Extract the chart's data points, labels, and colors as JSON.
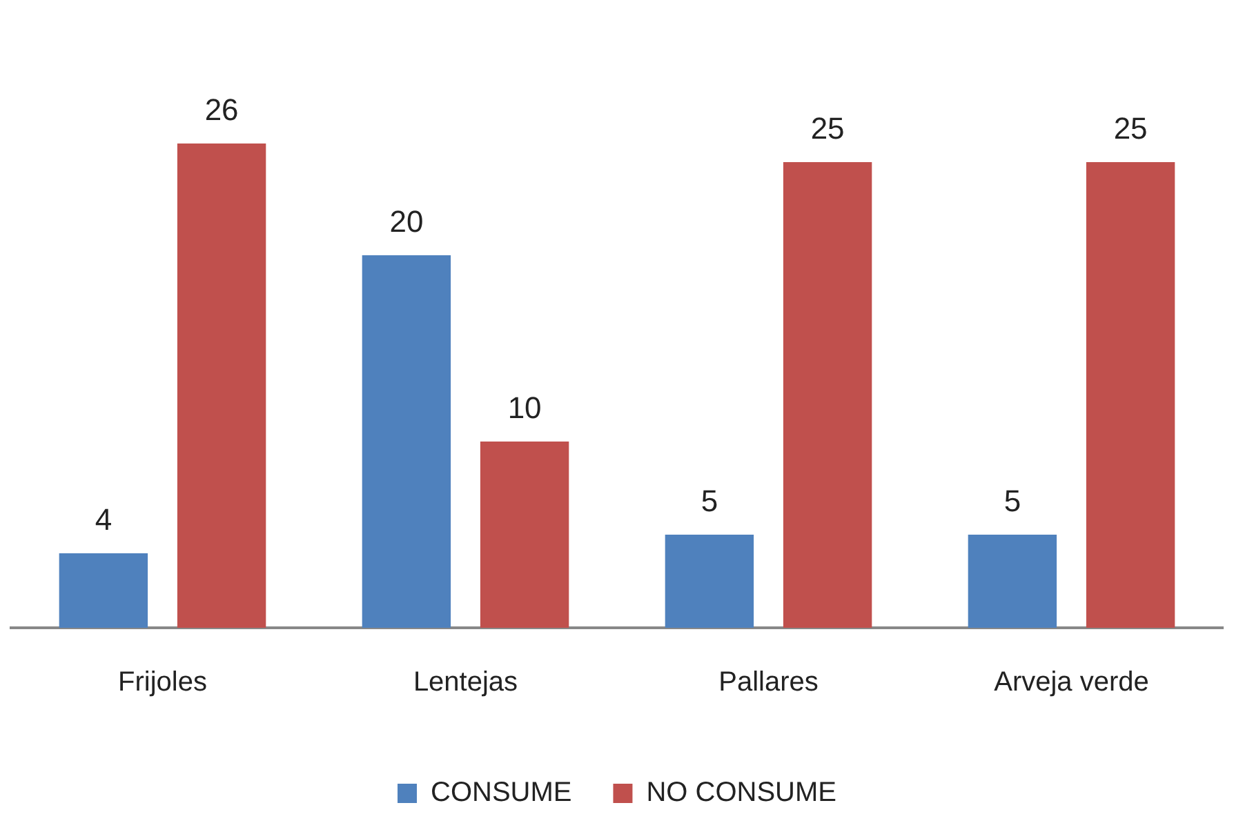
{
  "chart_data": {
    "type": "bar",
    "categories": [
      "Frijoles",
      "Lentejas",
      "Pallares",
      "Arveja verde"
    ],
    "series": [
      {
        "name": "CONSUME",
        "color": "#4f81bd",
        "values": [
          4,
          20,
          5,
          5
        ]
      },
      {
        "name": "NO CONSUME",
        "color": "#c0504d",
        "values": [
          26,
          10,
          25,
          25
        ]
      }
    ],
    "data_labels": true,
    "legend": "bottom",
    "grid": false
  }
}
